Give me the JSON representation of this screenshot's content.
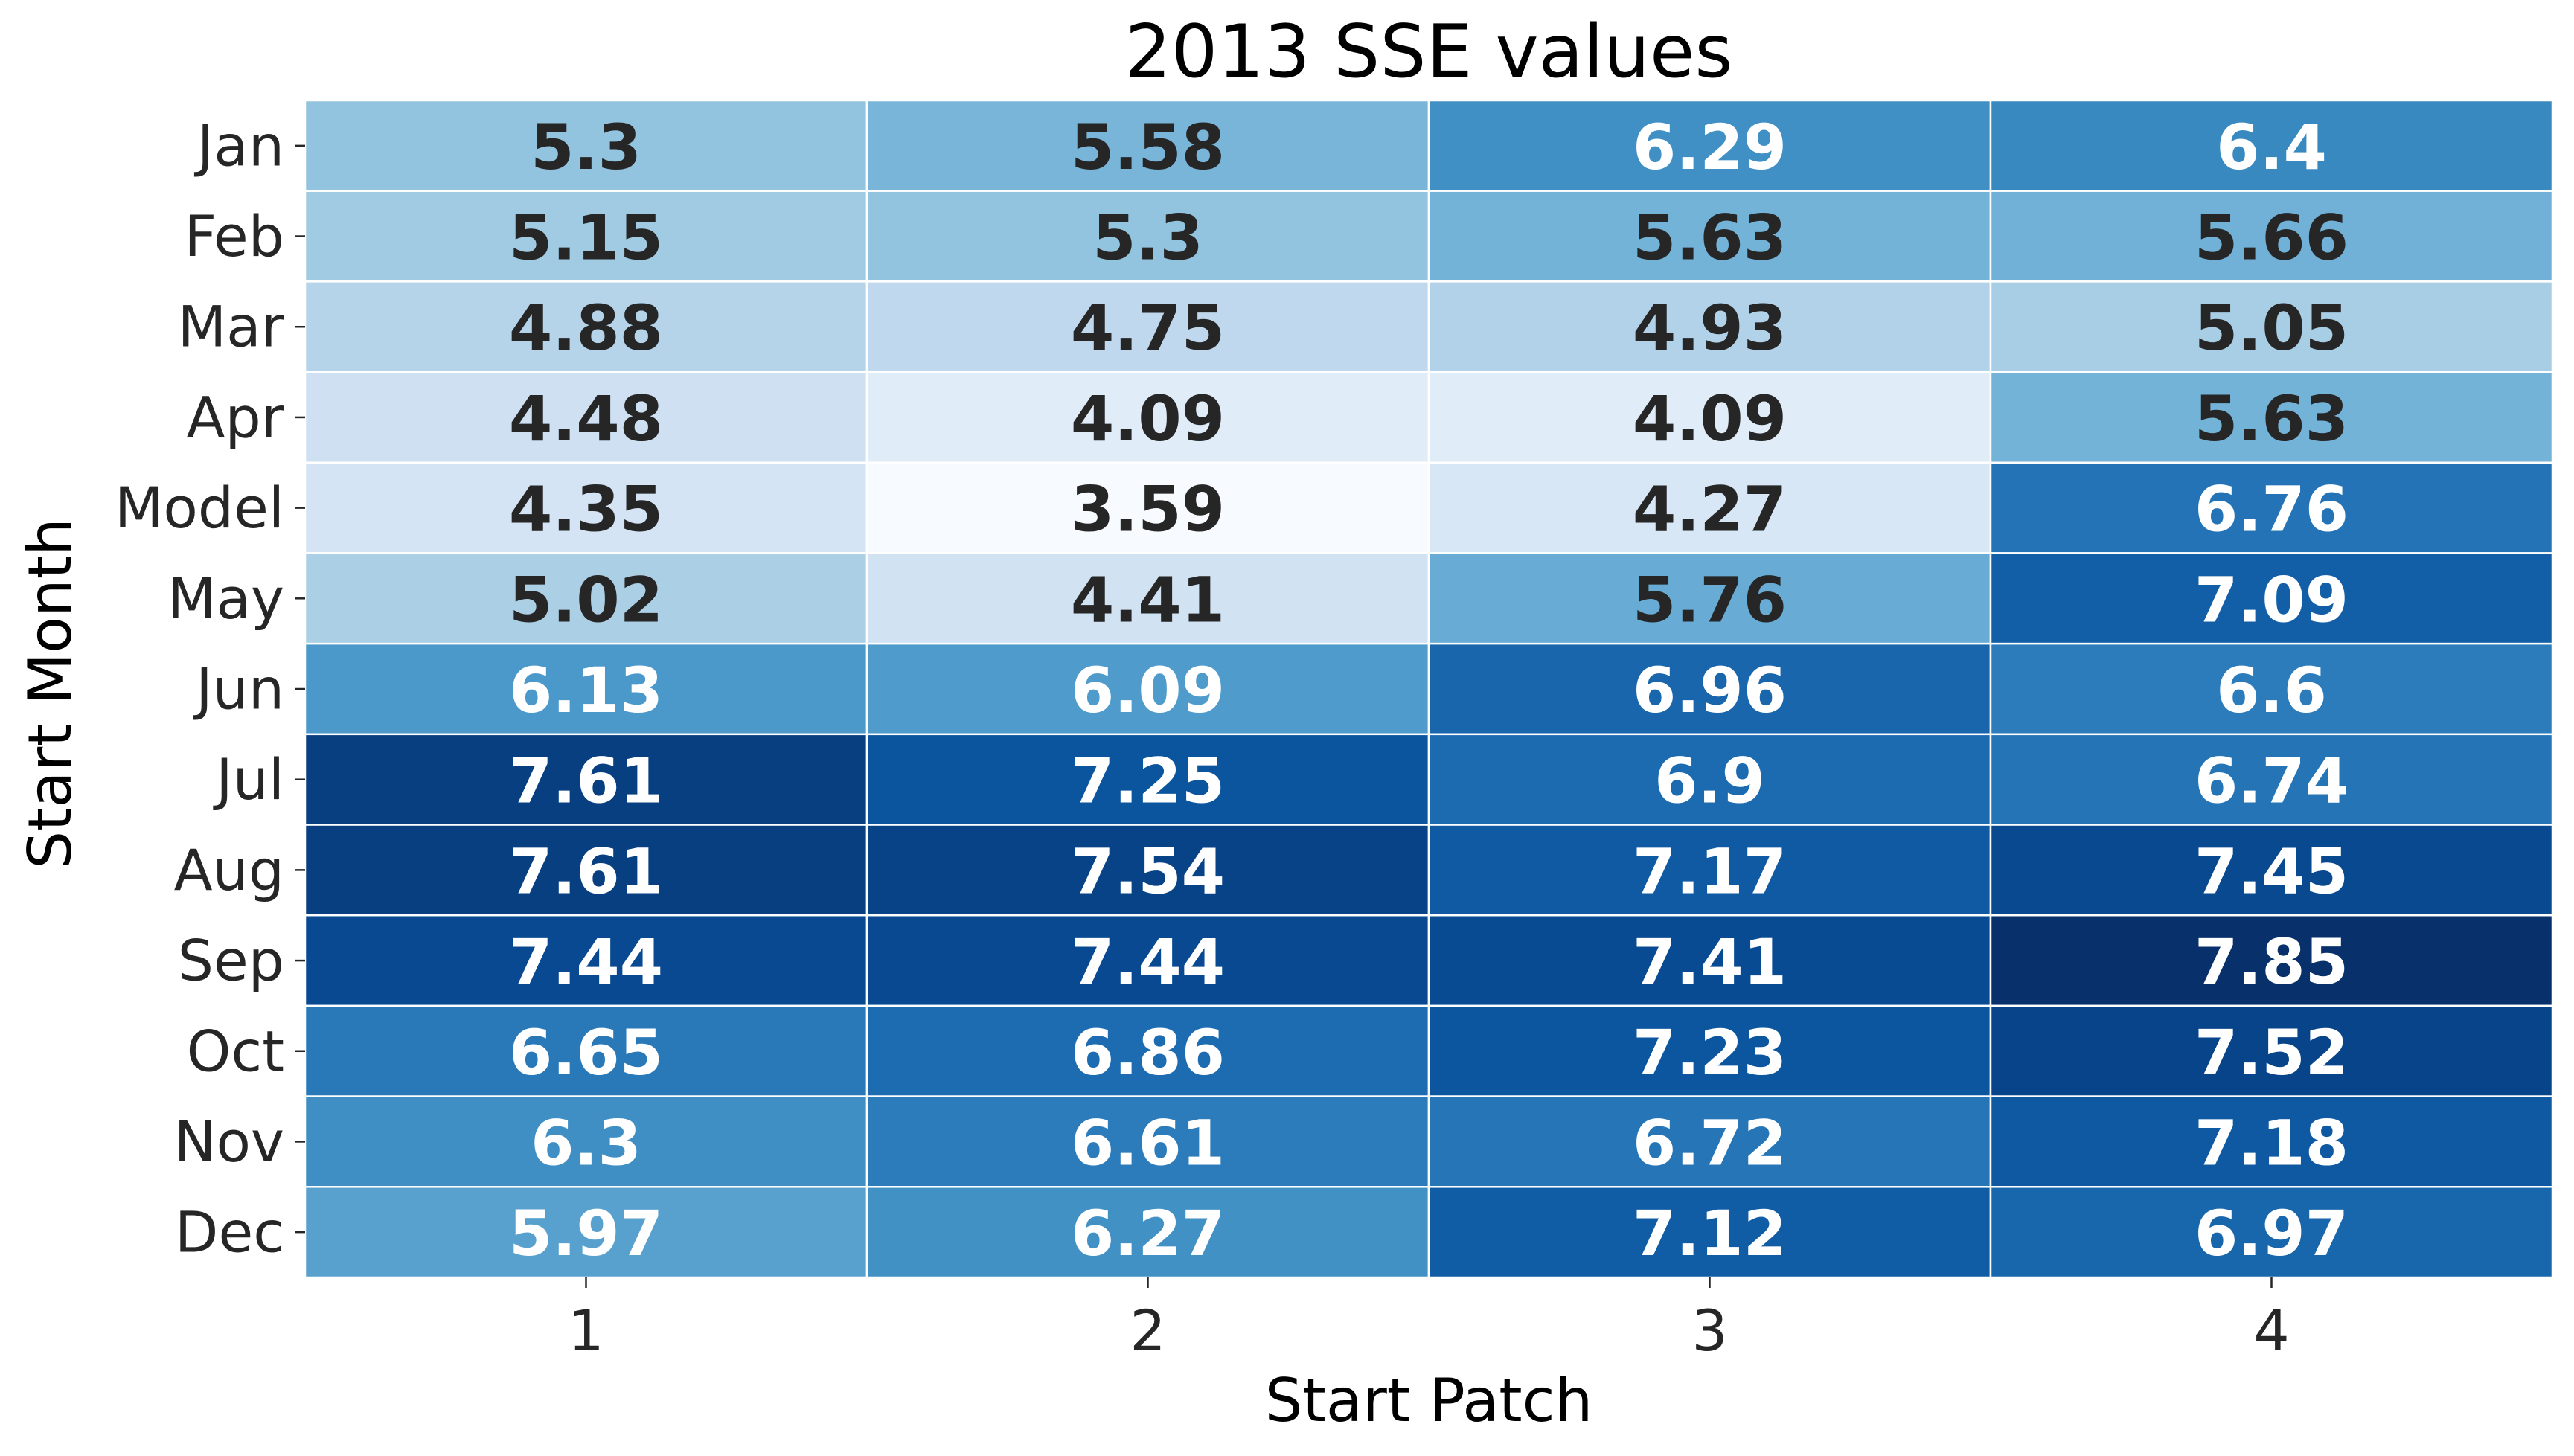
{
  "chart_data": {
    "type": "heatmap",
    "title": "2013 SSE values",
    "xlabel": "Start Patch",
    "ylabel": "Start Month",
    "x_categories": [
      "1",
      "2",
      "3",
      "4"
    ],
    "y_categories": [
      "Jan",
      "Feb",
      "Mar",
      "Apr",
      "Model",
      "May",
      "Jun",
      "Jul",
      "Aug",
      "Sep",
      "Oct",
      "Nov",
      "Dec"
    ],
    "values": [
      [
        5.3,
        5.58,
        6.29,
        6.4
      ],
      [
        5.15,
        5.3,
        5.63,
        5.66
      ],
      [
        4.88,
        4.75,
        4.93,
        5.05
      ],
      [
        4.48,
        4.09,
        4.09,
        5.63
      ],
      [
        4.35,
        3.59,
        4.27,
        6.76
      ],
      [
        5.02,
        4.41,
        5.76,
        7.09
      ],
      [
        6.13,
        6.09,
        6.96,
        6.6
      ],
      [
        7.61,
        7.25,
        6.9,
        6.74
      ],
      [
        7.61,
        7.54,
        7.17,
        7.45
      ],
      [
        7.44,
        7.44,
        7.41,
        7.85
      ],
      [
        6.65,
        6.86,
        7.23,
        7.52
      ],
      [
        6.3,
        6.61,
        6.72,
        7.18
      ],
      [
        5.97,
        6.27,
        7.12,
        6.97
      ]
    ],
    "colormap": "Blues",
    "color_range": [
      3.59,
      7.85
    ],
    "annotations": true,
    "colorbar": false,
    "gridline_color": "#ffffff"
  }
}
